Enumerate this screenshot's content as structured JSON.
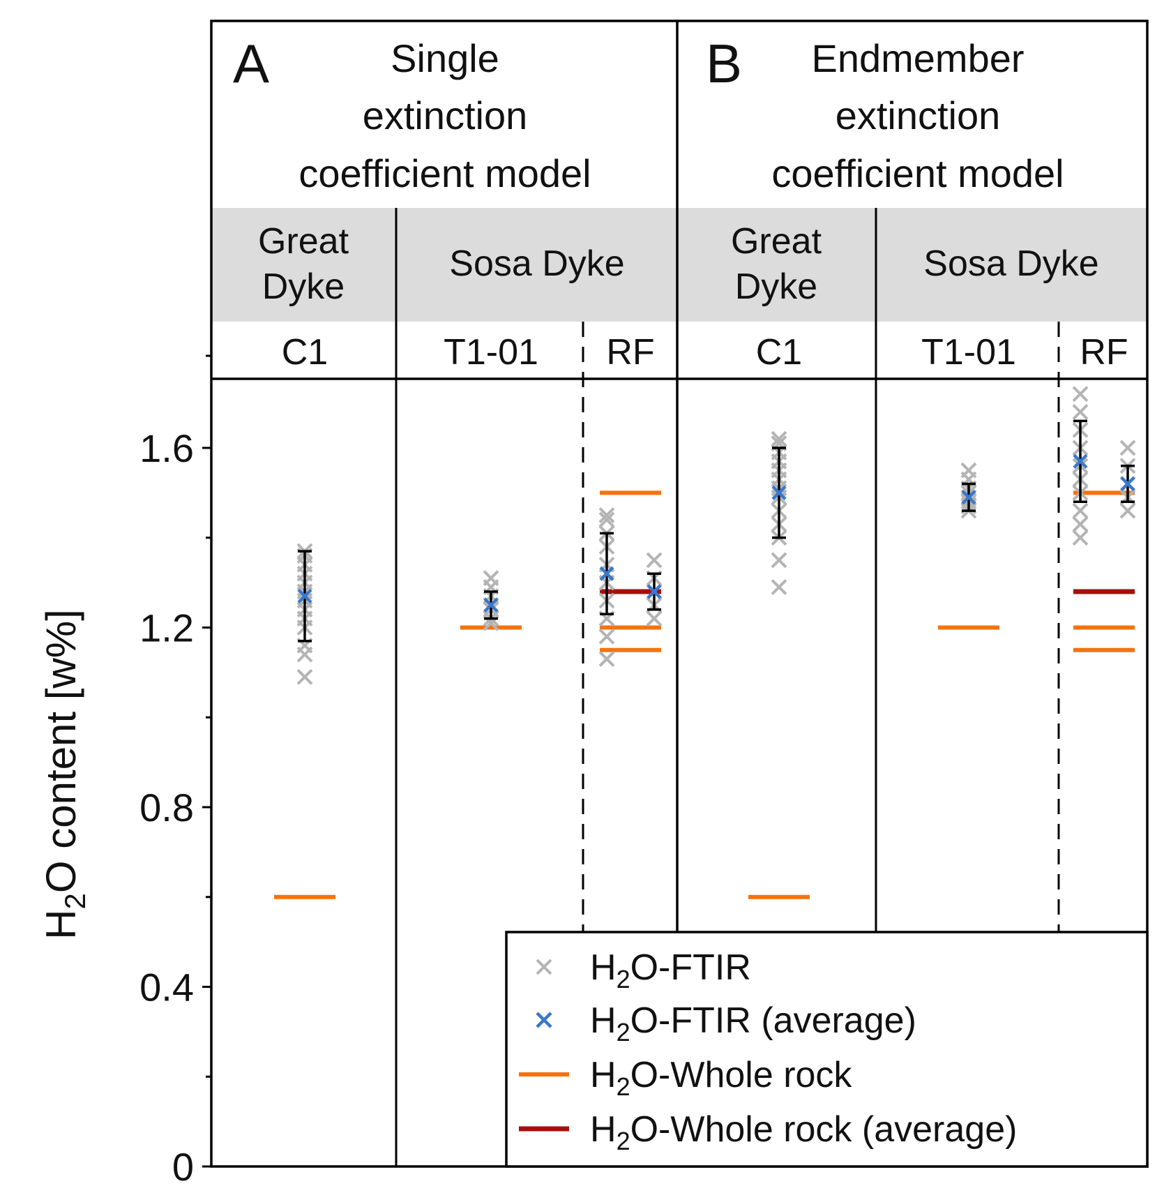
{
  "chart_data": {
    "type": "scatter",
    "ylabel": {
      "prefix": "H",
      "sub": "2",
      "suffix": "O content [w%]"
    },
    "ylim": [
      0,
      1.75
    ],
    "yticks": [
      {
        "value": 0,
        "label": "0"
      },
      {
        "value": 0.4,
        "label": "0.4"
      },
      {
        "value": 0.8,
        "label": "0.8"
      },
      {
        "value": 1.2,
        "label": "1.2"
      },
      {
        "value": 1.6,
        "label": "1.6"
      }
    ],
    "yminor": [
      0.2,
      0.6,
      1.0,
      1.4
    ],
    "colors": {
      "ftir": "#b4b4b4",
      "ftir_avg": "#3a78c9",
      "whole_rock": "#f5730f",
      "whole_rock_avg": "#a80d0d",
      "header_band": "#dcdcdc",
      "error_bar": "#000000"
    },
    "panels": [
      {
        "letter": "A",
        "title": [
          "Single",
          "extinction",
          "coefficient model"
        ],
        "groups": [
          {
            "dyke": [
              "Great",
              "Dyke"
            ],
            "samples": [
              "C1"
            ]
          },
          {
            "dyke": [
              "Sosa Dyke"
            ],
            "samples": [
              "T1-01",
              "RF"
            ]
          }
        ],
        "columns": [
          {
            "sample": "C1",
            "ftir_points": [
              {
                "x": 0,
                "y": 1.09
              },
              {
                "x": 0,
                "y": 1.14
              },
              {
                "x": 0,
                "y": 1.16
              },
              {
                "x": 0,
                "y": 1.2
              },
              {
                "x": 0,
                "y": 1.22
              },
              {
                "x": 0,
                "y": 1.24
              },
              {
                "x": 0,
                "y": 1.26
              },
              {
                "x": 0,
                "y": 1.28
              },
              {
                "x": 0,
                "y": 1.3
              },
              {
                "x": 0,
                "y": 1.32
              },
              {
                "x": 0,
                "y": 1.34
              },
              {
                "x": 0,
                "y": 1.36
              },
              {
                "x": 0,
                "y": 1.37
              }
            ],
            "averages": [
              {
                "x": 0,
                "mean": 1.27,
                "err": 0.1
              }
            ],
            "whole_rock": [
              0.6
            ],
            "whole_rock_avg": []
          },
          {
            "sample": "T1-01",
            "ftir_points": [
              {
                "x": 0,
                "y": 1.21
              },
              {
                "x": 0,
                "y": 1.22
              },
              {
                "x": 0,
                "y": 1.24
              },
              {
                "x": 0,
                "y": 1.25
              },
              {
                "x": 0,
                "y": 1.27
              },
              {
                "x": 0,
                "y": 1.29
              },
              {
                "x": 0,
                "y": 1.31
              }
            ],
            "averages": [
              {
                "x": 0,
                "mean": 1.25,
                "err": 0.03
              }
            ],
            "whole_rock": [
              1.2
            ],
            "whole_rock_avg": []
          },
          {
            "sample": "RF",
            "ftir_points": [
              {
                "x": -0.18,
                "y": 1.13
              },
              {
                "x": -0.18,
                "y": 1.18
              },
              {
                "x": -0.18,
                "y": 1.22
              },
              {
                "x": -0.18,
                "y": 1.26
              },
              {
                "x": -0.18,
                "y": 1.3
              },
              {
                "x": -0.18,
                "y": 1.34
              },
              {
                "x": -0.18,
                "y": 1.38
              },
              {
                "x": -0.18,
                "y": 1.41
              },
              {
                "x": -0.18,
                "y": 1.44
              },
              {
                "x": -0.18,
                "y": 1.45
              },
              {
                "x": 0.18,
                "y": 1.22
              },
              {
                "x": 0.18,
                "y": 1.25
              },
              {
                "x": 0.18,
                "y": 1.28
              },
              {
                "x": 0.18,
                "y": 1.31
              },
              {
                "x": 0.18,
                "y": 1.35
              }
            ],
            "averages": [
              {
                "x": -0.18,
                "mean": 1.32,
                "err": 0.09
              },
              {
                "x": 0.18,
                "mean": 1.28,
                "err": 0.04
              }
            ],
            "whole_rock": [
              1.5,
              1.2,
              1.15
            ],
            "whole_rock_avg": [
              1.28
            ]
          }
        ]
      },
      {
        "letter": "B",
        "title": [
          "Endmember",
          "extinction",
          "coefficient model"
        ],
        "groups": [
          {
            "dyke": [
              "Great",
              "Dyke"
            ],
            "samples": [
              "C1"
            ]
          },
          {
            "dyke": [
              "Sosa Dyke"
            ],
            "samples": [
              "T1-01",
              "RF"
            ]
          }
        ],
        "columns": [
          {
            "sample": "C1",
            "ftir_points": [
              {
                "x": 0,
                "y": 1.29
              },
              {
                "x": 0,
                "y": 1.35
              },
              {
                "x": 0,
                "y": 1.4
              },
              {
                "x": 0,
                "y": 1.43
              },
              {
                "x": 0,
                "y": 1.46
              },
              {
                "x": 0,
                "y": 1.49
              },
              {
                "x": 0,
                "y": 1.51
              },
              {
                "x": 0,
                "y": 1.53
              },
              {
                "x": 0,
                "y": 1.55
              },
              {
                "x": 0,
                "y": 1.57
              },
              {
                "x": 0,
                "y": 1.59
              },
              {
                "x": 0,
                "y": 1.61
              },
              {
                "x": 0,
                "y": 1.62
              }
            ],
            "averages": [
              {
                "x": 0,
                "mean": 1.5,
                "err": 0.1
              }
            ],
            "whole_rock": [
              0.6
            ],
            "whole_rock_avg": []
          },
          {
            "sample": "T1-01",
            "ftir_points": [
              {
                "x": 0,
                "y": 1.46
              },
              {
                "x": 0,
                "y": 1.47
              },
              {
                "x": 0,
                "y": 1.48
              },
              {
                "x": 0,
                "y": 1.49
              },
              {
                "x": 0,
                "y": 1.5
              },
              {
                "x": 0,
                "y": 1.51
              },
              {
                "x": 0,
                "y": 1.53
              },
              {
                "x": 0,
                "y": 1.55
              }
            ],
            "averages": [
              {
                "x": 0,
                "mean": 1.49,
                "err": 0.03
              }
            ],
            "whole_rock": [
              1.2
            ],
            "whole_rock_avg": []
          },
          {
            "sample": "RF",
            "ftir_points": [
              {
                "x": -0.18,
                "y": 1.4
              },
              {
                "x": -0.18,
                "y": 1.43
              },
              {
                "x": -0.18,
                "y": 1.46
              },
              {
                "x": -0.18,
                "y": 1.5
              },
              {
                "x": -0.18,
                "y": 1.53
              },
              {
                "x": -0.18,
                "y": 1.56
              },
              {
                "x": -0.18,
                "y": 1.6
              },
              {
                "x": -0.18,
                "y": 1.64
              },
              {
                "x": -0.18,
                "y": 1.68
              },
              {
                "x": -0.18,
                "y": 1.72
              },
              {
                "x": 0.18,
                "y": 1.46
              },
              {
                "x": 0.18,
                "y": 1.49
              },
              {
                "x": 0.18,
                "y": 1.52
              },
              {
                "x": 0.18,
                "y": 1.56
              },
              {
                "x": 0.18,
                "y": 1.6
              }
            ],
            "averages": [
              {
                "x": -0.18,
                "mean": 1.57,
                "err": 0.09
              },
              {
                "x": 0.18,
                "mean": 1.52,
                "err": 0.04
              }
            ],
            "whole_rock": [
              1.5,
              1.2,
              1.15
            ],
            "whole_rock_avg": [
              1.28
            ]
          }
        ]
      }
    ],
    "legend": {
      "placement": "bottom-right",
      "entries": [
        {
          "marker": "x-gray",
          "prefix": "H",
          "sub": "2",
          "suffix": "O-FTIR"
        },
        {
          "marker": "x-blue",
          "prefix": "H",
          "sub": "2",
          "suffix": "O-FTIR (average)"
        },
        {
          "marker": "line-orange",
          "prefix": "H",
          "sub": "2",
          "suffix": "O-Whole rock"
        },
        {
          "marker": "line-red",
          "prefix": "H",
          "sub": "2",
          "suffix": "O-Whole rock (average)"
        }
      ]
    }
  }
}
